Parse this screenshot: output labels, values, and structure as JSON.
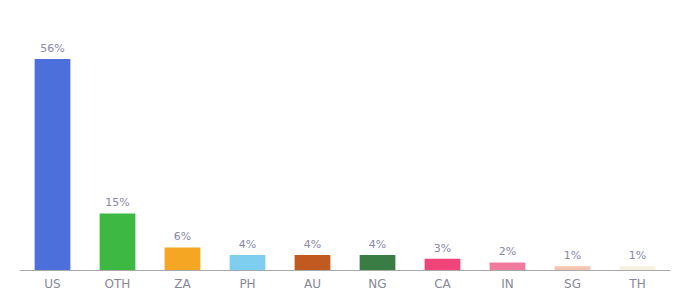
{
  "chart_data": {
    "type": "bar",
    "categories": [
      "US",
      "OTH",
      "ZA",
      "PH",
      "AU",
      "NG",
      "CA",
      "IN",
      "SG",
      "TH"
    ],
    "values": [
      56,
      15,
      6,
      4,
      4,
      4,
      3,
      2,
      1,
      1
    ],
    "value_labels": [
      "56%",
      "15%",
      "6%",
      "4%",
      "4%",
      "4%",
      "3%",
      "2%",
      "1%",
      "1%"
    ],
    "data_labels": true,
    "colors": [
      "#4d6fdb",
      "#3cb843",
      "#f5a623",
      "#7ecef0",
      "#c05a20",
      "#3a7d44",
      "#f0437a",
      "#f07a9e",
      "#f5c4b0",
      "#f5f0e0"
    ],
    "ylim": [
      0,
      65
    ],
    "tick_labels": "x",
    "grid": false
  }
}
